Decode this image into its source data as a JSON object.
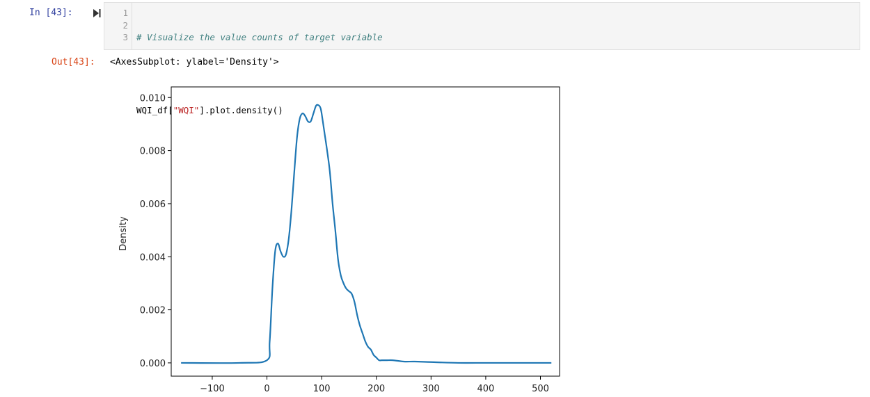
{
  "input_prompt": "In [43]:",
  "output_prompt": "Out[43]:",
  "run_icon": "run-cell-icon",
  "code": {
    "line_numbers": [
      "1",
      "2",
      "3"
    ],
    "comment": "# Visualize the value counts of target variable",
    "line3_pre": "WQI_df[",
    "line3_str": "\"WQI\"",
    "line3_post": "].plot.density()"
  },
  "output_text": "<AxesSubplot: ylabel='Density'>",
  "chart_data": {
    "type": "line",
    "title": "",
    "xlabel": "",
    "ylabel": "Density",
    "xlim": [
      -175,
      535
    ],
    "ylim": [
      -0.0005,
      0.0104
    ],
    "xticks": [
      -100,
      0,
      100,
      200,
      300,
      400,
      500
    ],
    "xtick_labels": [
      "−100",
      "0",
      "100",
      "200",
      "300",
      "400",
      "500"
    ],
    "yticks": [
      0.0,
      0.002,
      0.004,
      0.006,
      0.008,
      0.01
    ],
    "ytick_labels": [
      "0.000",
      "0.002",
      "0.004",
      "0.006",
      "0.008",
      "0.010"
    ],
    "grid": false,
    "series": [
      {
        "color": "#1f77b4",
        "x": [
          -157,
          -50,
          0,
          5,
          10,
          15,
          20,
          25,
          30,
          35,
          40,
          45,
          50,
          55,
          60,
          65,
          70,
          75,
          80,
          85,
          90,
          95,
          98,
          100,
          105,
          110,
          115,
          120,
          125,
          130,
          135,
          140,
          145,
          150,
          155,
          160,
          165,
          170,
          175,
          180,
          185,
          190,
          195,
          200,
          205,
          210,
          215,
          220,
          230,
          250,
          270,
          300,
          350,
          400,
          450,
          520
        ],
        "y": [
          0.0,
          0.0,
          0.0001,
          0.0008,
          0.0028,
          0.0042,
          0.0045,
          0.0042,
          0.004,
          0.0041,
          0.0047,
          0.0058,
          0.0072,
          0.0085,
          0.0092,
          0.0094,
          0.0093,
          0.0091,
          0.0091,
          0.0094,
          0.0097,
          0.0097,
          0.0096,
          0.0094,
          0.0087,
          0.008,
          0.0072,
          0.006,
          0.005,
          0.0039,
          0.0033,
          0.003,
          0.0028,
          0.0027,
          0.0026,
          0.0023,
          0.0018,
          0.0014,
          0.0011,
          0.0008,
          0.0006,
          0.0005,
          0.0003,
          0.0002,
          0.0001,
          0.0001,
          0.0001,
          0.0001,
          0.0001,
          5e-05,
          5e-05,
          3e-05,
          0.0,
          0.0,
          0.0,
          0.0
        ]
      }
    ]
  }
}
